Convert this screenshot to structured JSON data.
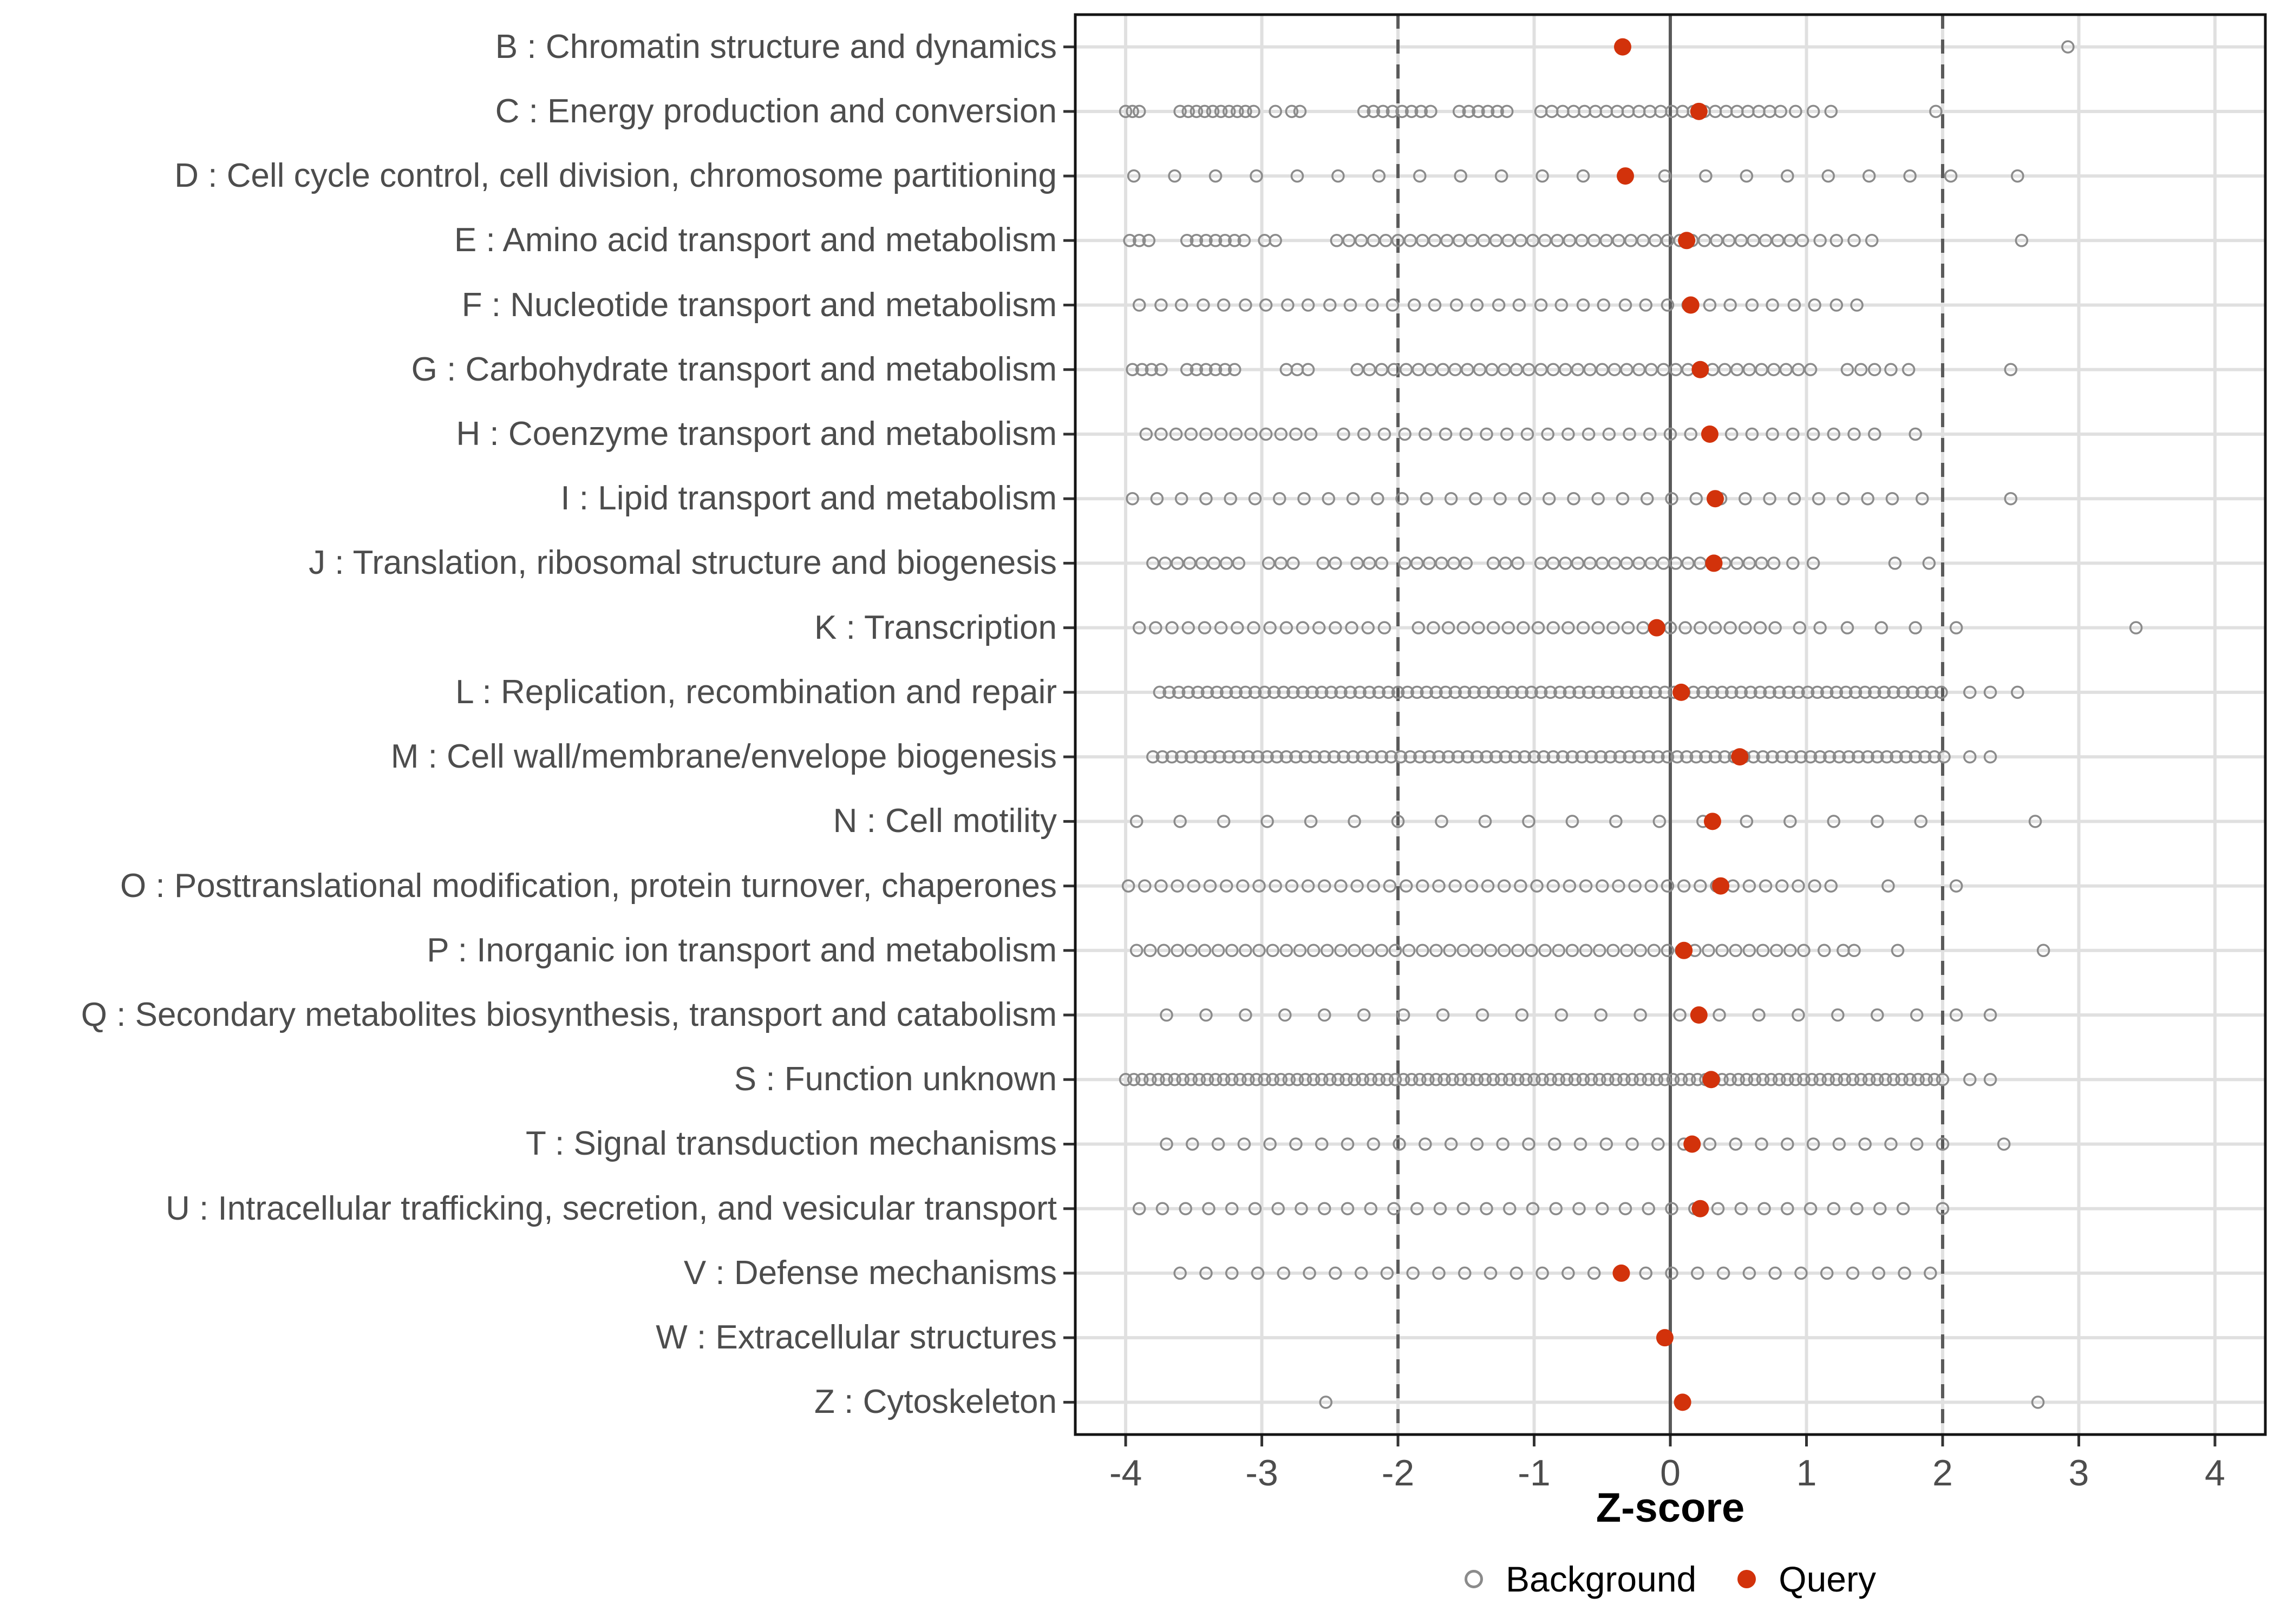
{
  "figure": {
    "background": "#FFFFFF"
  },
  "x_axis": {
    "title": "Z-score",
    "tick_labels": [
      "-4",
      "-3",
      "-2",
      "-1",
      "0",
      "1",
      "2",
      "3",
      "4"
    ]
  },
  "legend": {
    "items": [
      {
        "label": "Background",
        "marker": "open-circle",
        "color": "#8B8B8B"
      },
      {
        "label": "Query",
        "marker": "filled-circle",
        "color": "#D2320B"
      }
    ]
  },
  "chart_data": {
    "type": "scatter",
    "subtype": "categorical-dot-strip",
    "title": "",
    "xlabel": "Z-score",
    "ylabel": "",
    "xlim": [
      -4.37,
      4.37
    ],
    "x_ticks": [
      -4,
      -3,
      -2,
      -1,
      0,
      1,
      2,
      3,
      4
    ],
    "grid": "major-only",
    "legend_position": "bottom",
    "reference_lines": {
      "solid": [
        0
      ],
      "dashed": [
        -2,
        2
      ]
    },
    "colors": {
      "query": "#D2320B",
      "background_stroke": "#8B8B8B",
      "grid": "#E0E0E0",
      "reference": "#5A5A5A",
      "panel_border": "#141414",
      "axis_text": "#4D4D4D",
      "tick_mark": "#333333"
    },
    "categories": [
      {
        "code": "B",
        "label": "B : Chromatin structure and dynamics",
        "query": -0.35,
        "background": [
          2.92
        ]
      },
      {
        "code": "C",
        "label": "C : Energy production and conversion",
        "query": 0.21,
        "background": [
          -4.0,
          -3.95,
          -3.9,
          -3.6,
          -3.54,
          -3.48,
          -3.42,
          -3.36,
          -3.3,
          -3.24,
          -3.18,
          -3.12,
          -3.06,
          -2.9,
          -2.78,
          -2.72,
          -2.25,
          -2.18,
          -2.11,
          -2.04,
          -1.97,
          -1.9,
          -1.83,
          -1.76,
          -1.55,
          -1.48,
          -1.41,
          -1.34,
          -1.27,
          -1.2,
          -0.95,
          -0.87,
          -0.79,
          -0.71,
          -0.63,
          -0.55,
          -0.47,
          -0.39,
          -0.31,
          -0.23,
          -0.15,
          -0.07,
          0.01,
          0.09,
          0.17,
          0.25,
          0.33,
          0.41,
          0.49,
          0.57,
          0.65,
          0.73,
          0.81,
          0.92,
          1.05,
          1.18,
          1.95
        ]
      },
      {
        "code": "D",
        "label": "D : Cell cycle control, cell division, chromosome partitioning",
        "query": -0.33,
        "background": [
          -3.94,
          -3.64,
          -3.34,
          -3.04,
          -2.74,
          -2.44,
          -2.14,
          -1.84,
          -1.54,
          -1.24,
          -0.94,
          -0.64,
          -0.04,
          0.26,
          0.56,
          0.86,
          1.16,
          1.46,
          1.76,
          2.06,
          2.55
        ]
      },
      {
        "code": "E",
        "label": "E : Amino acid transport and metabolism",
        "query": 0.12,
        "background": [
          -3.97,
          -3.9,
          -3.83,
          -3.55,
          -3.48,
          -3.41,
          -3.34,
          -3.27,
          -3.2,
          -3.13,
          -2.98,
          -2.9,
          -2.45,
          -2.36,
          -2.27,
          -2.18,
          -2.09,
          -2.0,
          -1.91,
          -1.82,
          -1.73,
          -1.64,
          -1.55,
          -1.46,
          -1.37,
          -1.28,
          -1.19,
          -1.1,
          -1.01,
          -0.92,
          -0.83,
          -0.74,
          -0.65,
          -0.56,
          -0.47,
          -0.38,
          -0.29,
          -0.2,
          -0.11,
          -0.02,
          0.07,
          0.16,
          0.25,
          0.34,
          0.43,
          0.52,
          0.61,
          0.7,
          0.79,
          0.88,
          0.97,
          1.1,
          1.22,
          1.35,
          1.48,
          2.58
        ]
      },
      {
        "code": "F",
        "label": "F : Nucleotide transport and metabolism",
        "query": 0.15,
        "background": [
          -3.9,
          -3.74,
          -3.59,
          -3.43,
          -3.28,
          -3.12,
          -2.97,
          -2.81,
          -2.66,
          -2.5,
          -2.35,
          -2.19,
          -2.04,
          -1.88,
          -1.73,
          -1.57,
          -1.42,
          -1.26,
          -1.11,
          -0.95,
          -0.8,
          -0.64,
          -0.49,
          -0.33,
          -0.18,
          -0.02,
          0.13,
          0.29,
          0.44,
          0.6,
          0.75,
          0.91,
          1.06,
          1.22,
          1.37
        ]
      },
      {
        "code": "G",
        "label": "G : Carbohydrate transport and metabolism",
        "query": 0.22,
        "background": [
          -3.95,
          -3.88,
          -3.81,
          -3.74,
          -3.55,
          -3.48,
          -3.41,
          -3.34,
          -3.27,
          -3.2,
          -2.82,
          -2.74,
          -2.66,
          -2.3,
          -2.21,
          -2.12,
          -2.03,
          -1.94,
          -1.85,
          -1.76,
          -1.67,
          -1.58,
          -1.49,
          -1.4,
          -1.31,
          -1.22,
          -1.13,
          -1.04,
          -0.95,
          -0.86,
          -0.77,
          -0.68,
          -0.59,
          -0.5,
          -0.41,
          -0.32,
          -0.23,
          -0.14,
          -0.05,
          0.04,
          0.13,
          0.22,
          0.31,
          0.4,
          0.49,
          0.58,
          0.67,
          0.76,
          0.85,
          0.94,
          1.03,
          1.3,
          1.4,
          1.5,
          1.62,
          1.75,
          2.5
        ]
      },
      {
        "code": "H",
        "label": "H : Coenzyme transport and metabolism",
        "query": 0.29,
        "background": [
          -3.85,
          -3.74,
          -3.63,
          -3.52,
          -3.41,
          -3.3,
          -3.19,
          -3.08,
          -2.97,
          -2.86,
          -2.75,
          -2.64,
          -2.4,
          -2.25,
          -2.1,
          -1.95,
          -1.8,
          -1.65,
          -1.5,
          -1.35,
          -1.2,
          -1.05,
          -0.9,
          -0.75,
          -0.6,
          -0.45,
          -0.3,
          -0.15,
          0.0,
          0.15,
          0.3,
          0.45,
          0.6,
          0.75,
          0.9,
          1.05,
          1.2,
          1.35,
          1.5,
          1.8
        ]
      },
      {
        "code": "I",
        "label": "I : Lipid transport and metabolism",
        "query": 0.33,
        "background": [
          -3.95,
          -3.77,
          -3.59,
          -3.41,
          -3.23,
          -3.05,
          -2.87,
          -2.69,
          -2.51,
          -2.33,
          -2.15,
          -1.97,
          -1.79,
          -1.61,
          -1.43,
          -1.25,
          -1.07,
          -0.89,
          -0.71,
          -0.53,
          -0.35,
          -0.17,
          0.01,
          0.19,
          0.37,
          0.55,
          0.73,
          0.91,
          1.09,
          1.27,
          1.45,
          1.63,
          1.85,
          2.5
        ]
      },
      {
        "code": "J",
        "label": "J : Translation, ribosomal structure and biogenesis",
        "query": 0.32,
        "background": [
          -3.8,
          -3.71,
          -3.62,
          -3.53,
          -3.44,
          -3.35,
          -3.26,
          -3.17,
          -2.95,
          -2.86,
          -2.77,
          -2.55,
          -2.46,
          -2.3,
          -2.21,
          -2.12,
          -1.95,
          -1.86,
          -1.77,
          -1.68,
          -1.59,
          -1.5,
          -1.3,
          -1.21,
          -1.12,
          -0.95,
          -0.86,
          -0.77,
          -0.68,
          -0.59,
          -0.5,
          -0.41,
          -0.32,
          -0.23,
          -0.14,
          -0.05,
          0.04,
          0.13,
          0.22,
          0.31,
          0.4,
          0.49,
          0.58,
          0.67,
          0.76,
          0.9,
          1.05,
          1.65,
          1.9
        ]
      },
      {
        "code": "K",
        "label": "K : Transcription",
        "query": -0.1,
        "background": [
          -3.9,
          -3.78,
          -3.66,
          -3.54,
          -3.42,
          -3.3,
          -3.18,
          -3.06,
          -2.94,
          -2.82,
          -2.7,
          -2.58,
          -2.46,
          -2.34,
          -2.22,
          -2.1,
          -1.85,
          -1.74,
          -1.63,
          -1.52,
          -1.41,
          -1.3,
          -1.19,
          -1.08,
          -0.97,
          -0.86,
          -0.75,
          -0.64,
          -0.53,
          -0.42,
          -0.31,
          -0.2,
          0.0,
          0.11,
          0.22,
          0.33,
          0.44,
          0.55,
          0.66,
          0.77,
          0.95,
          1.1,
          1.3,
          1.55,
          1.8,
          2.1,
          3.42
        ]
      },
      {
        "code": "L",
        "label": "L : Replication, recombination and repair",
        "query": 0.08,
        "background": [
          -3.75,
          -3.68,
          -3.61,
          -3.54,
          -3.47,
          -3.4,
          -3.33,
          -3.26,
          -3.19,
          -3.12,
          -3.05,
          -2.98,
          -2.91,
          -2.84,
          -2.77,
          -2.7,
          -2.63,
          -2.56,
          -2.49,
          -2.42,
          -2.35,
          -2.28,
          -2.21,
          -2.14,
          -2.07,
          -2.0,
          -1.93,
          -1.86,
          -1.79,
          -1.72,
          -1.65,
          -1.58,
          -1.51,
          -1.44,
          -1.37,
          -1.3,
          -1.23,
          -1.16,
          -1.09,
          -1.02,
          -0.95,
          -0.88,
          -0.81,
          -0.74,
          -0.67,
          -0.6,
          -0.53,
          -0.46,
          -0.39,
          -0.32,
          -0.25,
          -0.18,
          -0.11,
          -0.04,
          0.03,
          0.1,
          0.17,
          0.24,
          0.31,
          0.38,
          0.45,
          0.52,
          0.59,
          0.66,
          0.73,
          0.8,
          0.87,
          0.94,
          1.01,
          1.08,
          1.15,
          1.22,
          1.29,
          1.36,
          1.43,
          1.5,
          1.57,
          1.64,
          1.71,
          1.78,
          1.85,
          1.92,
          1.99,
          2.2,
          2.35,
          2.55
        ]
      },
      {
        "code": "M",
        "label": "M : Cell wall/membrane/envelope biogenesis",
        "query": 0.51,
        "background": [
          -3.8,
          -3.73,
          -3.66,
          -3.59,
          -3.52,
          -3.45,
          -3.38,
          -3.31,
          -3.24,
          -3.17,
          -3.1,
          -3.03,
          -2.96,
          -2.89,
          -2.82,
          -2.75,
          -2.68,
          -2.61,
          -2.54,
          -2.47,
          -2.4,
          -2.33,
          -2.26,
          -2.19,
          -2.12,
          -2.05,
          -1.98,
          -1.91,
          -1.84,
          -1.77,
          -1.7,
          -1.63,
          -1.56,
          -1.49,
          -1.42,
          -1.35,
          -1.28,
          -1.21,
          -1.14,
          -1.07,
          -1.0,
          -0.93,
          -0.86,
          -0.79,
          -0.72,
          -0.65,
          -0.58,
          -0.51,
          -0.44,
          -0.37,
          -0.3,
          -0.23,
          -0.16,
          -0.09,
          -0.02,
          0.05,
          0.12,
          0.19,
          0.26,
          0.33,
          0.4,
          0.47,
          0.54,
          0.61,
          0.68,
          0.75,
          0.82,
          0.89,
          0.96,
          1.03,
          1.1,
          1.17,
          1.24,
          1.31,
          1.38,
          1.45,
          1.52,
          1.59,
          1.66,
          1.73,
          1.8,
          1.87,
          1.94,
          2.01,
          2.2,
          2.35
        ]
      },
      {
        "code": "N",
        "label": "N : Cell motility",
        "query": 0.31,
        "background": [
          -3.92,
          -3.6,
          -3.28,
          -2.96,
          -2.64,
          -2.32,
          -2.0,
          -1.68,
          -1.36,
          -1.04,
          -0.72,
          -0.4,
          -0.08,
          0.24,
          0.56,
          0.88,
          1.2,
          1.52,
          1.84,
          2.68
        ]
      },
      {
        "code": "O",
        "label": "O : Posttranslational modification, protein turnover, chaperones",
        "query": 0.37,
        "background": [
          -3.98,
          -3.86,
          -3.74,
          -3.62,
          -3.5,
          -3.38,
          -3.26,
          -3.14,
          -3.02,
          -2.9,
          -2.78,
          -2.66,
          -2.54,
          -2.42,
          -2.3,
          -2.18,
          -2.06,
          -1.94,
          -1.82,
          -1.7,
          -1.58,
          -1.46,
          -1.34,
          -1.22,
          -1.1,
          -0.98,
          -0.86,
          -0.74,
          -0.62,
          -0.5,
          -0.38,
          -0.26,
          -0.14,
          -0.02,
          0.1,
          0.22,
          0.34,
          0.46,
          0.58,
          0.7,
          0.82,
          0.94,
          1.06,
          1.18,
          1.6,
          2.1
        ]
      },
      {
        "code": "P",
        "label": "P : Inorganic ion transport and metabolism",
        "query": 0.1,
        "background": [
          -3.92,
          -3.82,
          -3.72,
          -3.62,
          -3.52,
          -3.42,
          -3.32,
          -3.22,
          -3.12,
          -3.02,
          -2.92,
          -2.82,
          -2.72,
          -2.62,
          -2.52,
          -2.42,
          -2.32,
          -2.22,
          -2.12,
          -2.02,
          -1.92,
          -1.82,
          -1.72,
          -1.62,
          -1.52,
          -1.42,
          -1.32,
          -1.22,
          -1.12,
          -1.02,
          -0.92,
          -0.82,
          -0.72,
          -0.62,
          -0.52,
          -0.42,
          -0.32,
          -0.22,
          -0.12,
          -0.02,
          0.08,
          0.18,
          0.28,
          0.38,
          0.48,
          0.58,
          0.68,
          0.78,
          0.88,
          0.98,
          1.13,
          1.27,
          1.35,
          1.67,
          2.74
        ]
      },
      {
        "code": "Q",
        "label": "Q : Secondary metabolites biosynthesis, transport and catabolism",
        "query": 0.21,
        "background": [
          -3.7,
          -3.41,
          -3.12,
          -2.83,
          -2.54,
          -2.25,
          -1.96,
          -1.67,
          -1.38,
          -1.09,
          -0.8,
          -0.51,
          -0.22,
          0.07,
          0.36,
          0.65,
          0.94,
          1.23,
          1.52,
          1.81,
          2.1,
          2.35
        ]
      },
      {
        "code": "S",
        "label": "S : Function unknown",
        "query": 0.3,
        "background": [
          -4.0,
          -3.94,
          -3.88,
          -3.82,
          -3.76,
          -3.7,
          -3.64,
          -3.58,
          -3.52,
          -3.46,
          -3.4,
          -3.34,
          -3.28,
          -3.22,
          -3.16,
          -3.1,
          -3.04,
          -2.98,
          -2.92,
          -2.86,
          -2.8,
          -2.74,
          -2.68,
          -2.62,
          -2.56,
          -2.5,
          -2.44,
          -2.38,
          -2.32,
          -2.26,
          -2.2,
          -2.14,
          -2.08,
          -2.02,
          -1.96,
          -1.9,
          -1.84,
          -1.78,
          -1.72,
          -1.66,
          -1.6,
          -1.54,
          -1.48,
          -1.42,
          -1.36,
          -1.3,
          -1.24,
          -1.18,
          -1.12,
          -1.06,
          -1.0,
          -0.94,
          -0.88,
          -0.82,
          -0.76,
          -0.7,
          -0.64,
          -0.58,
          -0.52,
          -0.46,
          -0.4,
          -0.34,
          -0.28,
          -0.22,
          -0.16,
          -0.1,
          -0.04,
          0.02,
          0.08,
          0.14,
          0.2,
          0.26,
          0.32,
          0.38,
          0.44,
          0.5,
          0.56,
          0.62,
          0.68,
          0.74,
          0.8,
          0.86,
          0.92,
          0.98,
          1.04,
          1.1,
          1.16,
          1.22,
          1.28,
          1.34,
          1.4,
          1.46,
          1.52,
          1.58,
          1.64,
          1.7,
          1.76,
          1.82,
          1.88,
          1.94,
          2.0,
          2.2,
          2.35
        ]
      },
      {
        "code": "T",
        "label": "T : Signal transduction mechanisms",
        "query": 0.16,
        "background": [
          -3.7,
          -3.51,
          -3.32,
          -3.13,
          -2.94,
          -2.75,
          -2.56,
          -2.37,
          -2.18,
          -1.99,
          -1.8,
          -1.61,
          -1.42,
          -1.23,
          -1.04,
          -0.85,
          -0.66,
          -0.47,
          -0.28,
          -0.09,
          0.1,
          0.29,
          0.48,
          0.67,
          0.86,
          1.05,
          1.24,
          1.43,
          1.62,
          1.81,
          2.0,
          2.45
        ]
      },
      {
        "code": "U",
        "label": "U : Intracellular trafficking, secretion, and vesicular transport",
        "query": 0.22,
        "background": [
          -3.9,
          -3.73,
          -3.56,
          -3.39,
          -3.22,
          -3.05,
          -2.88,
          -2.71,
          -2.54,
          -2.37,
          -2.2,
          -2.03,
          -1.86,
          -1.69,
          -1.52,
          -1.35,
          -1.18,
          -1.01,
          -0.84,
          -0.67,
          -0.5,
          -0.33,
          -0.16,
          0.01,
          0.18,
          0.35,
          0.52,
          0.69,
          0.86,
          1.03,
          1.2,
          1.37,
          1.54,
          1.71,
          2.0
        ]
      },
      {
        "code": "V",
        "label": "V : Defense mechanisms",
        "query": -0.36,
        "background": [
          -3.6,
          -3.41,
          -3.22,
          -3.03,
          -2.84,
          -2.65,
          -2.46,
          -2.27,
          -2.08,
          -1.89,
          -1.7,
          -1.51,
          -1.32,
          -1.13,
          -0.94,
          -0.75,
          -0.56,
          -0.37,
          -0.18,
          0.01,
          0.2,
          0.39,
          0.58,
          0.77,
          0.96,
          1.15,
          1.34,
          1.53,
          1.72,
          1.91
        ]
      },
      {
        "code": "W",
        "label": "W : Extracellular structures",
        "query": -0.04,
        "background": []
      },
      {
        "code": "Z",
        "label": "Z : Cytoskeleton",
        "query": 0.09,
        "background": [
          -2.53,
          2.7
        ]
      }
    ]
  }
}
